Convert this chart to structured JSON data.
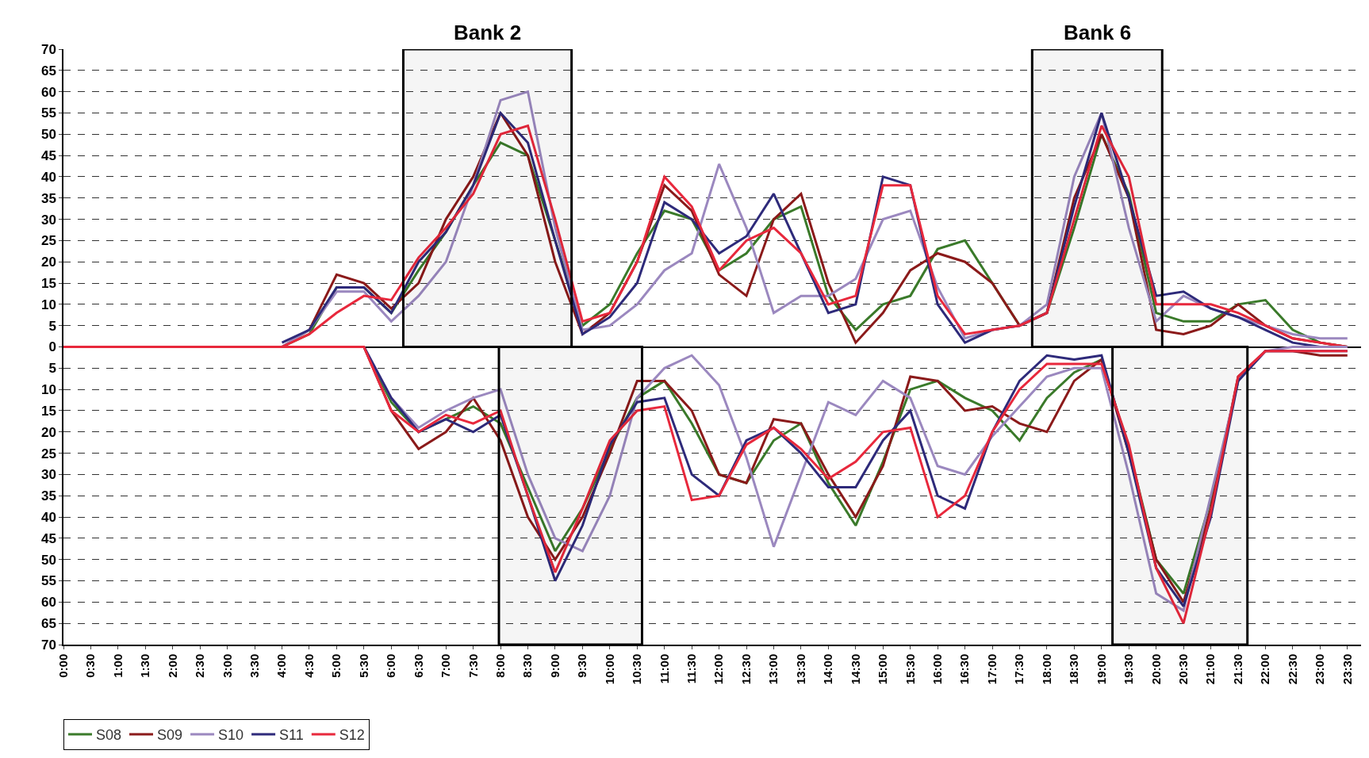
{
  "chart_data": {
    "type": "line",
    "x": [
      0,
      0.5,
      1,
      1.5,
      2,
      2.5,
      3,
      3.5,
      4,
      4.5,
      5,
      5.5,
      6,
      6.5,
      7,
      7.5,
      8,
      8.5,
      9,
      9.5,
      10,
      10.5,
      11,
      11.5,
      12,
      12.5,
      13,
      13.5,
      14,
      14.5,
      15,
      15.5,
      16,
      16.5,
      17,
      17.5,
      18,
      18.5,
      19,
      19.5,
      20,
      20.5,
      21,
      21.5,
      22,
      22.5,
      23,
      23.5
    ],
    "series": [
      {
        "name": "S08",
        "color": "#3a7a2a",
        "values": [
          null,
          null,
          null,
          null,
          null,
          null,
          null,
          null,
          0,
          3,
          14,
          14,
          8,
          18,
          27,
          38,
          48,
          45,
          25,
          5,
          10,
          22,
          32,
          30,
          18,
          22,
          30,
          33,
          12,
          4,
          10,
          12,
          23,
          25,
          15,
          5,
          8,
          28,
          50,
          36,
          8,
          6,
          6,
          10,
          11,
          4,
          1,
          0
        ]
      },
      {
        "name": "S09",
        "color": "#8b1a1a",
        "values": [
          null,
          null,
          null,
          null,
          null,
          null,
          null,
          null,
          0,
          4,
          17,
          15,
          9,
          15,
          30,
          40,
          55,
          45,
          20,
          3,
          8,
          20,
          38,
          32,
          17,
          12,
          30,
          36,
          15,
          1,
          8,
          18,
          22,
          20,
          15,
          5,
          8,
          35,
          50,
          35,
          4,
          3,
          5,
          10,
          5,
          2,
          1,
          0
        ]
      },
      {
        "name": "S10",
        "color": "#9b88bf",
        "values": [
          null,
          null,
          null,
          null,
          null,
          null,
          null,
          null,
          0,
          4,
          13,
          13,
          6,
          12,
          20,
          38,
          58,
          60,
          28,
          4,
          5,
          10,
          18,
          22,
          43,
          28,
          8,
          12,
          12,
          16,
          30,
          32,
          14,
          2,
          4,
          5,
          10,
          40,
          55,
          28,
          6,
          12,
          9,
          7,
          5,
          3,
          2,
          2
        ]
      },
      {
        "name": "S11",
        "color": "#2e2a7a",
        "values": [
          null,
          null,
          null,
          null,
          null,
          null,
          null,
          null,
          1,
          4,
          14,
          14,
          8,
          20,
          27,
          38,
          55,
          48,
          25,
          3,
          7,
          15,
          34,
          30,
          22,
          26,
          36,
          22,
          8,
          10,
          40,
          38,
          10,
          1,
          4,
          5,
          8,
          33,
          55,
          35,
          12,
          13,
          9,
          7,
          4,
          1,
          0,
          0
        ]
      },
      {
        "name": "S12",
        "color": "#e8283c",
        "values": [
          null,
          null,
          null,
          null,
          null,
          null,
          null,
          null,
          0,
          3,
          8,
          12,
          11,
          21,
          28,
          36,
          50,
          52,
          30,
          6,
          8,
          20,
          40,
          33,
          18,
          25,
          28,
          22,
          10,
          12,
          38,
          38,
          12,
          3,
          4,
          5,
          8,
          30,
          52,
          40,
          10,
          10,
          10,
          8,
          5,
          2,
          1,
          0
        ]
      },
      {
        "color": "#3a7a2a",
        "values": [
          null,
          null,
          null,
          null,
          null,
          null,
          null,
          null,
          null,
          null,
          null,
          0,
          -13,
          -20,
          -17,
          -14,
          -18,
          -33,
          -48,
          -38,
          -24,
          -12,
          -8,
          -18,
          -30,
          -32,
          -22,
          -18,
          -32,
          -42,
          -27,
          -10,
          -8,
          -12,
          -15,
          -22,
          -12,
          -6,
          -3,
          -24,
          -50,
          -58,
          -36,
          -8,
          null,
          null,
          null,
          null
        ]
      },
      {
        "color": "#8b1a1a",
        "values": [
          null,
          null,
          null,
          null,
          null,
          null,
          null,
          null,
          null,
          null,
          null,
          0,
          -15,
          -24,
          -20,
          -12,
          -22,
          -40,
          -50,
          -40,
          -25,
          -8,
          -8,
          -15,
          -30,
          -32,
          -17,
          -18,
          -30,
          -40,
          -28,
          -7,
          -8,
          -15,
          -14,
          -18,
          -20,
          -8,
          -3,
          -25,
          -50,
          -60,
          -38,
          -7,
          -1,
          -1,
          -2,
          -2
        ]
      },
      {
        "color": "#9b88bf",
        "values": [
          null,
          null,
          null,
          null,
          null,
          null,
          null,
          null,
          null,
          null,
          null,
          0,
          -12,
          -19,
          -15,
          -12,
          -10,
          -30,
          -45,
          -48,
          -35,
          -12,
          -5,
          -2,
          -9,
          -26,
          -47,
          -30,
          -13,
          -16,
          -8,
          -12,
          -28,
          -30,
          -21,
          -14,
          -7,
          -5,
          -5,
          -30,
          -58,
          -62,
          -35,
          -8,
          -1,
          0,
          0,
          0
        ]
      },
      {
        "color": "#2e2a7a",
        "values": [
          null,
          null,
          null,
          null,
          null,
          null,
          null,
          null,
          null,
          null,
          null,
          0,
          -12,
          -20,
          -17,
          -20,
          -16,
          -35,
          -55,
          -42,
          -23,
          -13,
          -12,
          -30,
          -35,
          -22,
          -19,
          -25,
          -33,
          -33,
          -22,
          -15,
          -35,
          -38,
          -20,
          -8,
          -2,
          -3,
          -2,
          -25,
          -52,
          -61,
          -40,
          -8,
          -1,
          -1,
          -1,
          -1
        ]
      },
      {
        "color": "#e8283c",
        "values": [
          0,
          0,
          0,
          0,
          0,
          0,
          0,
          0,
          0,
          0,
          0,
          0,
          -15,
          -20,
          -16,
          -18,
          -15,
          -35,
          -53,
          -38,
          -22,
          -15,
          -14,
          -36,
          -35,
          -23,
          -19,
          -24,
          -31,
          -27,
          -20,
          -19,
          -40,
          -35,
          -20,
          -10,
          -4,
          -4,
          -4,
          -23,
          -52,
          -65,
          -39,
          -7,
          -1,
          -1,
          -1,
          -1
        ]
      }
    ],
    "xlim": [
      0,
      23.75
    ],
    "xticks": [
      {
        "value": 0,
        "label": "0:00"
      },
      {
        "value": 0.5,
        "label": "0:30"
      },
      {
        "value": 1,
        "label": "1:00"
      },
      {
        "value": 1.5,
        "label": "1:30"
      },
      {
        "value": 2,
        "label": "2:00"
      },
      {
        "value": 2.5,
        "label": "2:30"
      },
      {
        "value": 3,
        "label": "3:00"
      },
      {
        "value": 3.5,
        "label": "3:30"
      },
      {
        "value": 4,
        "label": "4:00"
      },
      {
        "value": 4.5,
        "label": "4:30"
      },
      {
        "value": 5,
        "label": "5:00"
      },
      {
        "value": 5.5,
        "label": "5:30"
      },
      {
        "value": 6,
        "label": "6:00"
      },
      {
        "value": 6.5,
        "label": "6:30"
      },
      {
        "value": 7,
        "label": "7:00"
      },
      {
        "value": 7.5,
        "label": "7:30"
      },
      {
        "value": 8,
        "label": "8:00"
      },
      {
        "value": 8.5,
        "label": "8:30"
      },
      {
        "value": 9,
        "label": "9:00"
      },
      {
        "value": 9.5,
        "label": "9:30"
      },
      {
        "value": 10,
        "label": "10:00"
      },
      {
        "value": 10.5,
        "label": "10:30"
      },
      {
        "value": 11,
        "label": "11:00"
      },
      {
        "value": 11.5,
        "label": "11:30"
      },
      {
        "value": 12,
        "label": "12:00"
      },
      {
        "value": 12.5,
        "label": "12:30"
      },
      {
        "value": 13,
        "label": "13:00"
      },
      {
        "value": 13.5,
        "label": "13:30"
      },
      {
        "value": 14,
        "label": "14:00"
      },
      {
        "value": 14.5,
        "label": "14:30"
      },
      {
        "value": 15,
        "label": "15:00"
      },
      {
        "value": 15.5,
        "label": "15:30"
      },
      {
        "value": 16,
        "label": "16:00"
      },
      {
        "value": 16.5,
        "label": "16:30"
      },
      {
        "value": 17,
        "label": "17:00"
      },
      {
        "value": 17.5,
        "label": "17:30"
      },
      {
        "value": 18,
        "label": "18:00"
      },
      {
        "value": 18.5,
        "label": "18:30"
      },
      {
        "value": 19,
        "label": "19:00"
      },
      {
        "value": 19.5,
        "label": "19:30"
      },
      {
        "value": 20,
        "label": "20:00"
      },
      {
        "value": 20.5,
        "label": "20:30"
      },
      {
        "value": 21,
        "label": "21:00"
      },
      {
        "value": 21.5,
        "label": "21:30"
      },
      {
        "value": 22,
        "label": "22:00"
      },
      {
        "value": 22.5,
        "label": "22:30"
      },
      {
        "value": 23,
        "label": "23:00"
      },
      {
        "value": 23.5,
        "label": "23:30"
      }
    ],
    "ylim": [
      -70,
      70
    ],
    "yticks": [
      {
        "value": -70,
        "label": "70"
      },
      {
        "value": -65,
        "label": "65"
      },
      {
        "value": -60,
        "label": "60"
      },
      {
        "value": -55,
        "label": "55"
      },
      {
        "value": -50,
        "label": "50"
      },
      {
        "value": -45,
        "label": "45"
      },
      {
        "value": -40,
        "label": "40"
      },
      {
        "value": -35,
        "label": "35"
      },
      {
        "value": -30,
        "label": "30"
      },
      {
        "value": -25,
        "label": "25"
      },
      {
        "value": -20,
        "label": "20"
      },
      {
        "value": -15,
        "label": "15"
      },
      {
        "value": -10,
        "label": "10"
      },
      {
        "value": -5,
        "label": "5"
      },
      0,
      5,
      10,
      15,
      20,
      25,
      30,
      35,
      40,
      45,
      50,
      55,
      60,
      65,
      70
    ],
    "bands": [
      {
        "axis": "x",
        "from": 6.22,
        "to": 9.3,
        "label": "Bank 2",
        "color": "#000000"
      },
      {
        "axis": "x",
        "from": 7.97,
        "to": 10.59,
        "label": null,
        "color": "#000000"
      },
      {
        "axis": "x",
        "from": 17.73,
        "to": 20.11,
        "label": "Bank 6",
        "color": "#000000"
      },
      {
        "axis": "x",
        "from": 19.2,
        "to": 21.67,
        "label": null,
        "color": "#000000"
      }
    ],
    "grid": "y",
    "legend": "bottom left"
  }
}
